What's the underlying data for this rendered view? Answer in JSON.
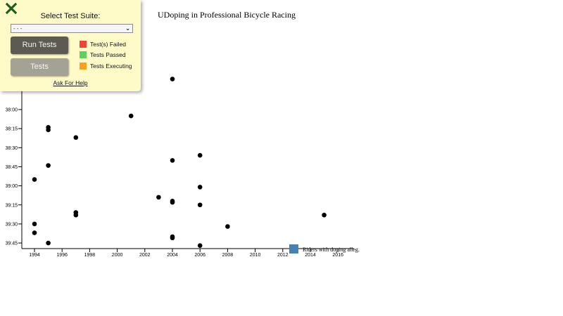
{
  "chart_data": {
    "type": "scatter",
    "title": "UDoping in Professional Bicycle Racing",
    "xlabel": "",
    "ylabel": "",
    "x_ticks": [
      "1994",
      "1996",
      "1998",
      "2000",
      "2002",
      "2004",
      "2006",
      "2008",
      "2010",
      "2012",
      "2014",
      "2016"
    ],
    "y_ticks": [
      "38:00",
      "38:15",
      "38:30",
      "38:45",
      "39:00",
      "39:15",
      "39:30",
      "39:45"
    ],
    "xlim": [
      1993.2,
      2016.4
    ],
    "ylim_seconds": [
      2256,
      2390
    ],
    "grid": false,
    "legend": {
      "position": "bottom-right",
      "entries": [
        {
          "label": "Riders with doping alleg.",
          "color": "#4682b4"
        }
      ]
    },
    "series": [
      {
        "name": "Riders",
        "color": "#000000",
        "points": [
          {
            "year": 2004,
            "time": "37:36"
          },
          {
            "year": 2001,
            "time": "38:05"
          },
          {
            "year": 1995,
            "time": "38:14"
          },
          {
            "year": 1995,
            "time": "38:16"
          },
          {
            "year": 1997,
            "time": "38:22"
          },
          {
            "year": 2006,
            "time": "38:36"
          },
          {
            "year": 2004,
            "time": "38:40"
          },
          {
            "year": 1995,
            "time": "38:44"
          },
          {
            "year": 1994,
            "time": "38:55"
          },
          {
            "year": 2006,
            "time": "39:01"
          },
          {
            "year": 2003,
            "time": "39:09"
          },
          {
            "year": 2004,
            "time": "39:12"
          },
          {
            "year": 2004,
            "time": "39:13"
          },
          {
            "year": 2006,
            "time": "39:15"
          },
          {
            "year": 1997,
            "time": "39:21"
          },
          {
            "year": 1997,
            "time": "39:23"
          },
          {
            "year": 2015,
            "time": "39:23"
          },
          {
            "year": 1994,
            "time": "39:30"
          },
          {
            "year": 2008,
            "time": "39:32"
          },
          {
            "year": 1994,
            "time": "39:37"
          },
          {
            "year": 2004,
            "time": "39:40"
          },
          {
            "year": 2004,
            "time": "39:41"
          },
          {
            "year": 1995,
            "time": "39:45"
          },
          {
            "year": 2006,
            "time": "39:47"
          }
        ]
      }
    ]
  },
  "test_panel": {
    "close_icon": "close-x-icon",
    "title": "Select Test Suite:",
    "select_value": "- - -",
    "run_button": "Run Tests",
    "tests_button": "Tests",
    "legend": [
      {
        "label": "Test(s) Failed",
        "color": "#f44336"
      },
      {
        "label": "Tests Passed",
        "color": "#5ed05e"
      },
      {
        "label": "Tests Executing",
        "color": "#ff9f1a"
      }
    ],
    "help_link": "Ask For Help"
  }
}
